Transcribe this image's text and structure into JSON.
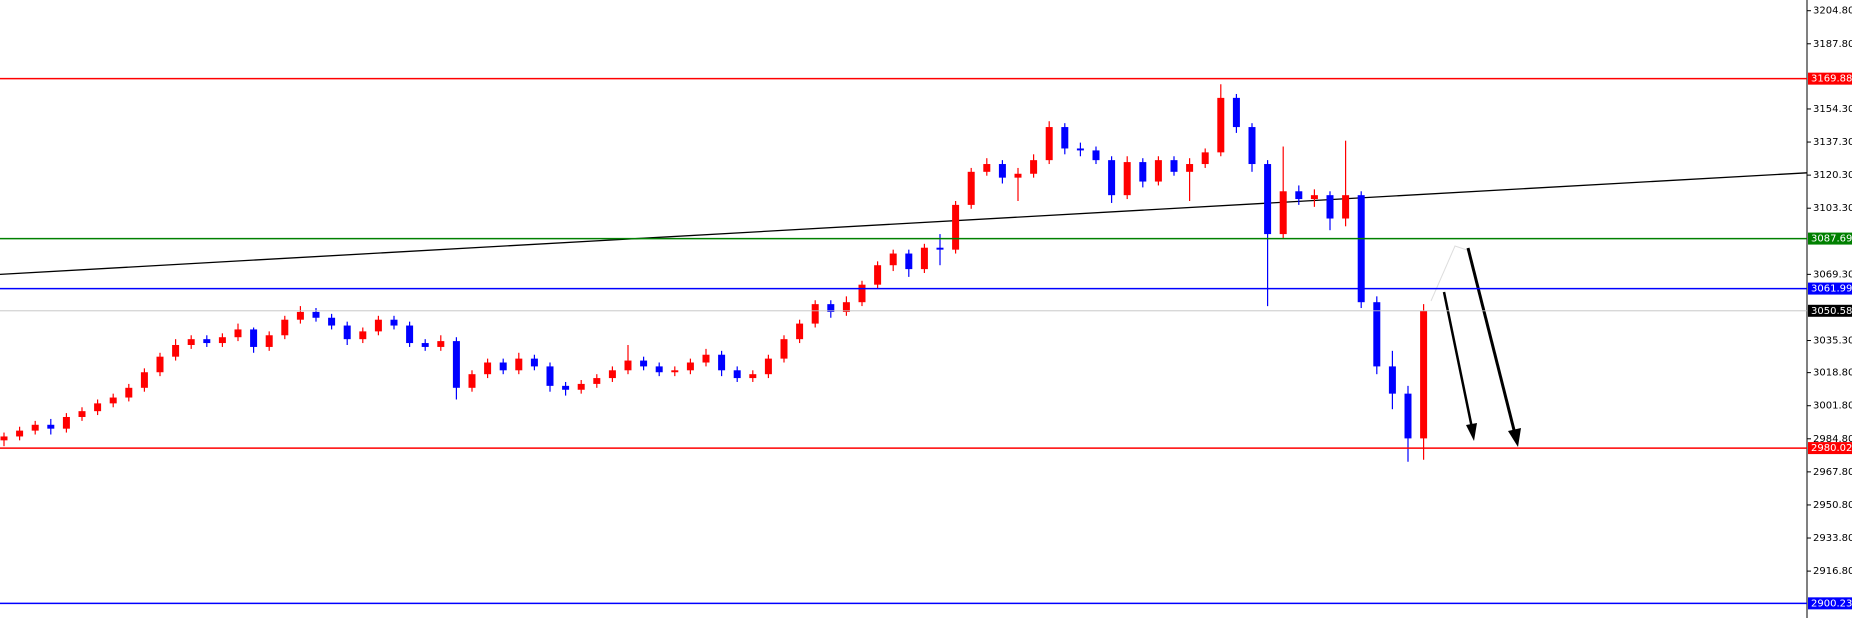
{
  "chart_data": {
    "type": "candlestick",
    "up_color": "#ff0000",
    "down_color": "#0000ff",
    "open": [
      2984,
      2986,
      2989,
      2992,
      2990,
      2996,
      2999,
      3003,
      3006,
      3011,
      3019,
      3027,
      3033,
      3036,
      3034,
      3037,
      3041,
      3032,
      3038,
      3046,
      3050,
      3047,
      3043,
      3036,
      3040,
      3046,
      3043,
      3034,
      3032,
      3035,
      3011,
      3018,
      3024,
      3020,
      3026,
      3022,
      3012,
      3010,
      3013,
      3016,
      3020,
      3025,
      3022,
      3019,
      3020,
      3024,
      3028,
      3020,
      3016,
      3018,
      3026,
      3036,
      3044,
      3054,
      3050,
      3055,
      3064,
      3074,
      3080,
      3072,
      3083,
      3082,
      3105,
      3122,
      3126,
      3119,
      3121,
      3128,
      3145,
      3134,
      3133,
      3128,
      3110,
      3127,
      3117,
      3128,
      3122,
      3126,
      3132,
      3160,
      3145,
      3126,
      3090,
      3112,
      3108,
      3110,
      3098,
      3110,
      3055,
      3022,
      3008,
      2985
    ],
    "high": [
      2988,
      2991,
      2994,
      2995,
      2998,
      3001,
      3005,
      3008,
      3013,
      3021,
      3029,
      3036,
      3038,
      3038,
      3039,
      3044,
      3042,
      3040,
      3048,
      3053,
      3052,
      3049,
      3045,
      3042,
      3048,
      3048,
      3045,
      3036,
      3038,
      3037,
      3020,
      3026,
      3026,
      3029,
      3028,
      3024,
      3014,
      3015,
      3018,
      3022,
      3033,
      3027,
      3024,
      3022,
      3026,
      3031,
      3030,
      3022,
      3020,
      3028,
      3038,
      3046,
      3056,
      3056,
      3058,
      3066,
      3076,
      3082,
      3082,
      3085,
      3090,
      3107,
      3124,
      3129,
      3128,
      3124,
      3131,
      3148,
      3147,
      3137,
      3135,
      3130,
      3130,
      3129,
      3130,
      3130,
      3129,
      3134,
      3167,
      3162,
      3147,
      3128,
      3135,
      3115,
      3113,
      3112,
      3138,
      3112,
      3058,
      3030,
      3012,
      3054
    ],
    "low": [
      2981,
      2984,
      2987,
      2987,
      2988,
      2994,
      2997,
      3001,
      3004,
      3009,
      3017,
      3025,
      3031,
      3032,
      3032,
      3035,
      3029,
      3030,
      3036,
      3044,
      3045,
      3041,
      3033,
      3034,
      3038,
      3041,
      3032,
      3030,
      3030,
      3005,
      3009,
      3016,
      3018,
      3018,
      3020,
      3009,
      3007,
      3008,
      3011,
      3014,
      3018,
      3020,
      3017,
      3017,
      3018,
      3022,
      3017,
      3014,
      3014,
      3016,
      3024,
      3034,
      3042,
      3047,
      3048,
      3053,
      3062,
      3071,
      3068,
      3070,
      3074,
      3080,
      3103,
      3120,
      3116,
      3107,
      3119,
      3126,
      3131,
      3130,
      3126,
      3106,
      3108,
      3114,
      3115,
      3120,
      3107,
      3124,
      3130,
      3142,
      3122,
      3053,
      3088,
      3105,
      3104,
      3092,
      3094,
      3052,
      3018,
      3000,
      2973,
      2974
    ],
    "close": [
      2986,
      2989,
      2992,
      2990,
      2996,
      2999,
      3003,
      3006,
      3011,
      3019,
      3027,
      3033,
      3036,
      3034,
      3037,
      3041,
      3032,
      3038,
      3046,
      3050,
      3047,
      3043,
      3036,
      3040,
      3046,
      3043,
      3034,
      3032,
      3035,
      3011,
      3018,
      3024,
      3020,
      3026,
      3022,
      3012,
      3010,
      3013,
      3016,
      3020,
      3025,
      3022,
      3019,
      3020,
      3024,
      3028,
      3020,
      3016,
      3018,
      3026,
      3036,
      3044,
      3054,
      3050,
      3055,
      3064,
      3074,
      3080,
      3072,
      3083,
      3082,
      3105,
      3122,
      3126,
      3119,
      3121,
      3128,
      3145,
      3134,
      3133,
      3128,
      3110,
      3127,
      3117,
      3128,
      3122,
      3126,
      3132,
      3160,
      3145,
      3126,
      3090,
      3112,
      3108,
      3110,
      3098,
      3110,
      3055,
      3022,
      3008,
      2985,
      3050.58
    ],
    "ylim": [
      2892.7,
      3210.3
    ],
    "yticks": [
      {
        "value": 3204.8,
        "label": "3204.80"
      },
      {
        "value": 3187.8,
        "label": "3187.80"
      },
      {
        "value": 3154.3,
        "label": "3154.30"
      },
      {
        "value": 3137.3,
        "label": "3137.30"
      },
      {
        "value": 3120.3,
        "label": "3120.30"
      },
      {
        "value": 3103.3,
        "label": "3103.30"
      },
      {
        "value": 3069.3,
        "label": "3069.30"
      },
      {
        "value": 3035.3,
        "label": "3035.30"
      },
      {
        "value": 3018.8,
        "label": "3018.80"
      },
      {
        "value": 3001.8,
        "label": "3001.80"
      },
      {
        "value": 2984.8,
        "label": "2984.80"
      },
      {
        "value": 2967.8,
        "label": "2967.80"
      },
      {
        "value": 2950.8,
        "label": "2950.80"
      },
      {
        "value": 2933.8,
        "label": "2933.80"
      },
      {
        "value": 2916.8,
        "label": "2916.80"
      }
    ],
    "levels": [
      {
        "value": 3169.88,
        "color": "#ff0000"
      },
      {
        "value": 3087.69,
        "color": "#008000"
      },
      {
        "value": 3061.99,
        "color": "#0000ff"
      },
      {
        "value": 3050.58,
        "color": "#c0c0c0",
        "label_color": "#000000"
      },
      {
        "value": 2980.02,
        "color": "#ff0000"
      },
      {
        "value": 2900.23,
        "color": "#0000ff"
      }
    ],
    "trendline": {
      "start": 3069.3,
      "end": 3121.5,
      "color": "#000000"
    }
  }
}
